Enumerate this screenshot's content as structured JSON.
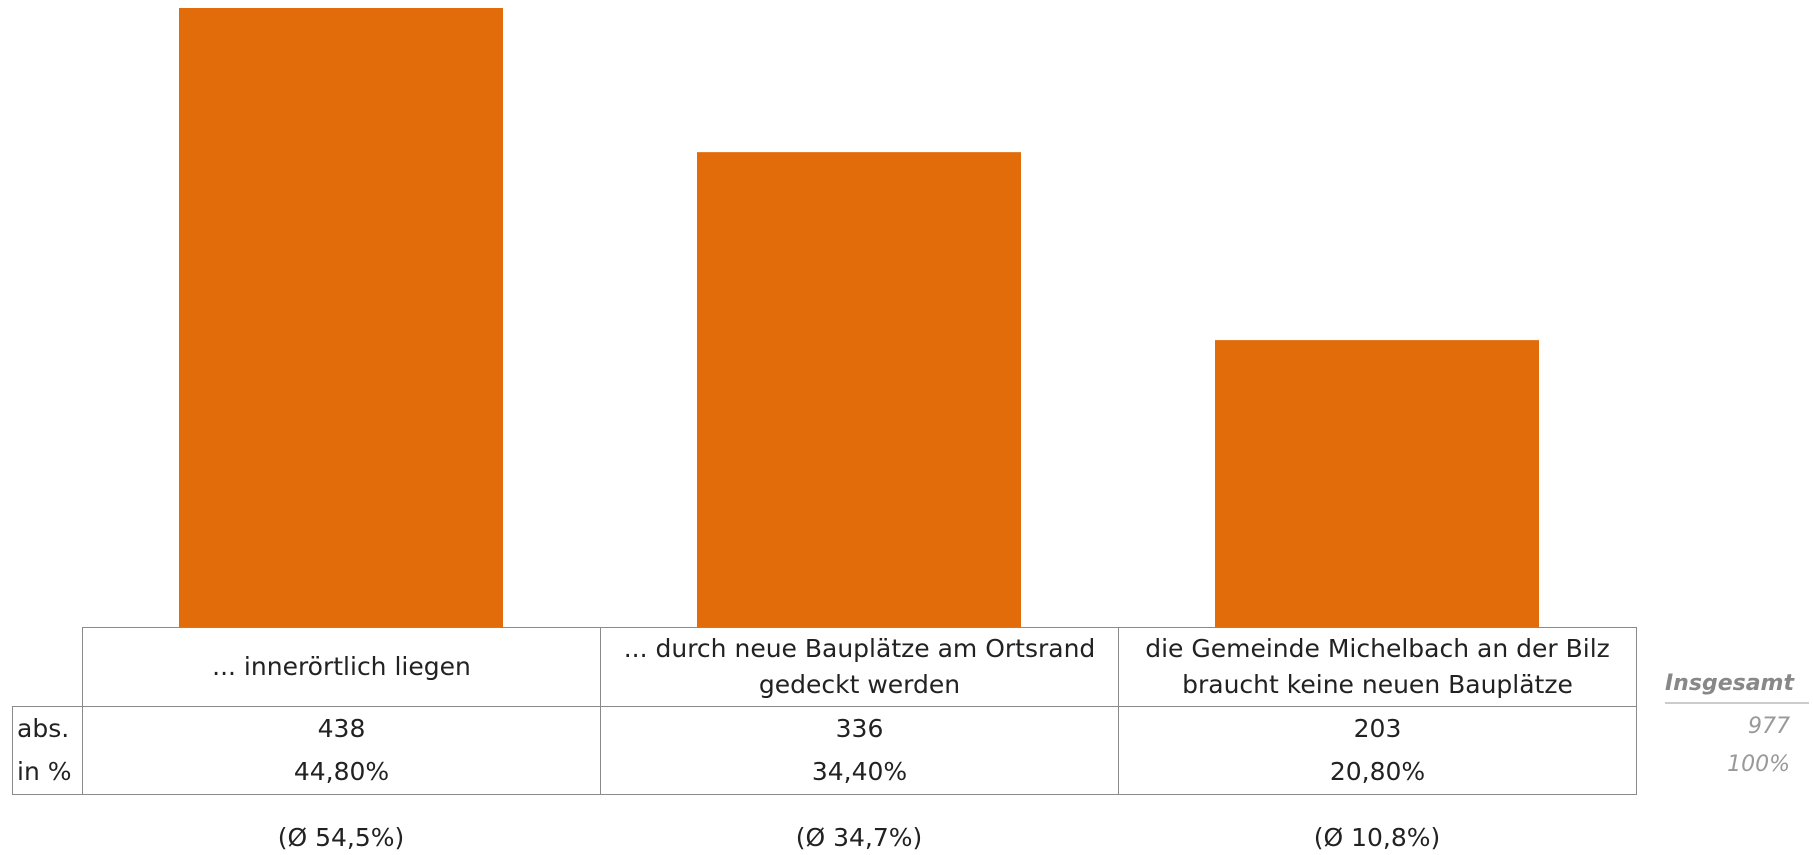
{
  "chart_data": {
    "type": "bar",
    "categories": [
      "... innerörtlich liegen",
      "... durch neue Bauplätze am Ortsrand gedeckt werden",
      "die Gemeinde Michelbach an der Bilz braucht keine neuen Bauplätze"
    ],
    "color": "#e26b0a",
    "series": [
      {
        "name": "abs.",
        "values": [
          438,
          336,
          203
        ]
      },
      {
        "name": "in %",
        "values": [
          44.8,
          34.4,
          20.8
        ],
        "value_labels": [
          "44,80%",
          "34,40%",
          "20,80%"
        ]
      }
    ],
    "total": {
      "label": "Insgesamt",
      "abs": 977,
      "percent": 100,
      "percent_label": "100%"
    },
    "averages": [
      54.5,
      34.7,
      10.8
    ],
    "average_labels": [
      "(Ø 54,5%)",
      "(Ø 34,7%)",
      "(Ø 10,8%)"
    ]
  }
}
